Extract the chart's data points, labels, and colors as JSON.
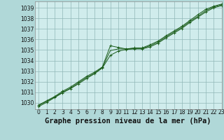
{
  "title": "Graphe pression niveau de la mer (hPa)",
  "bg_color": "#b0d8d8",
  "plot_bg_color": "#d0ecec",
  "grid_color": "#90b8b8",
  "line_color": "#1a5c1a",
  "xlim": [
    -0.5,
    23
  ],
  "ylim": [
    1029.4,
    1039.6
  ],
  "yticks": [
    1030,
    1031,
    1032,
    1033,
    1034,
    1035,
    1036,
    1037,
    1038,
    1039
  ],
  "xticks": [
    0,
    1,
    2,
    3,
    4,
    5,
    6,
    7,
    8,
    9,
    10,
    11,
    12,
    13,
    14,
    15,
    16,
    17,
    18,
    19,
    20,
    21,
    22,
    23
  ],
  "series1": [
    1029.8,
    1030.2,
    1030.6,
    1031.1,
    1031.5,
    1032.0,
    1032.5,
    1032.9,
    1033.4,
    1035.4,
    1035.25,
    1035.1,
    1035.2,
    1035.2,
    1035.5,
    1035.85,
    1036.35,
    1036.8,
    1037.25,
    1037.8,
    1038.35,
    1038.85,
    1039.15,
    1039.35
  ],
  "series2": [
    1029.65,
    1030.05,
    1030.5,
    1030.95,
    1031.35,
    1031.8,
    1032.3,
    1032.75,
    1033.3,
    1034.5,
    1034.9,
    1035.05,
    1035.1,
    1035.1,
    1035.3,
    1035.65,
    1036.15,
    1036.6,
    1037.05,
    1037.6,
    1038.1,
    1038.6,
    1039.0,
    1039.2
  ],
  "series3": [
    1029.75,
    1030.15,
    1030.55,
    1031.0,
    1031.4,
    1031.9,
    1032.4,
    1032.8,
    1033.35,
    1034.95,
    1035.1,
    1035.1,
    1035.15,
    1035.15,
    1035.4,
    1035.75,
    1036.25,
    1036.7,
    1037.15,
    1037.7,
    1038.2,
    1038.72,
    1039.08,
    1039.28
  ],
  "title_fontsize": 7.5,
  "tick_fontsize": 5.5
}
